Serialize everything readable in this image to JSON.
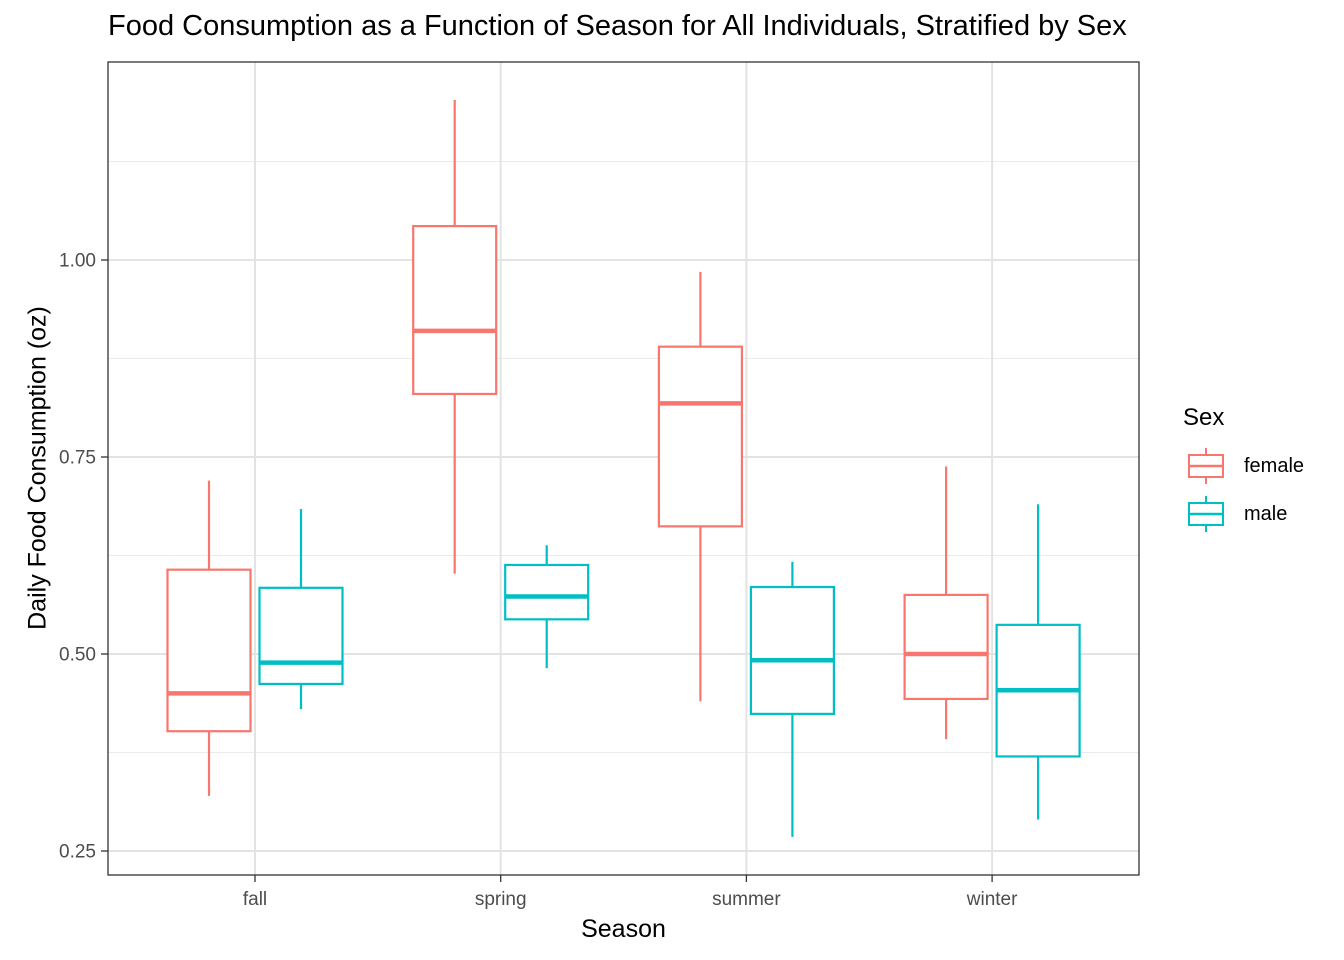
{
  "chart_data": {
    "type": "boxplot",
    "title": "Food Consumption as a Function of Season for All Individuals, Stratified by Sex",
    "xlabel": "Season",
    "ylabel": "Daily Food Consumption (oz)",
    "ylim": [
      0.22,
      1.25
    ],
    "y_ticks": [
      0.25,
      0.5,
      0.75,
      1.0
    ],
    "y_tick_labels": [
      "0.25",
      "0.50",
      "0.75",
      "1.00"
    ],
    "categories": [
      "fall",
      "spring",
      "summer",
      "winter"
    ],
    "legend": {
      "title": "Sex",
      "position": "right"
    },
    "grid": true,
    "series": [
      {
        "name": "female",
        "color": "#F8766D",
        "boxes": [
          {
            "min": 0.32,
            "q1": 0.402,
            "median": 0.45,
            "q3": 0.607,
            "max": 0.72
          },
          {
            "min": 0.602,
            "q1": 0.83,
            "median": 0.91,
            "q3": 1.043,
            "max": 1.203
          },
          {
            "min": 0.44,
            "q1": 0.662,
            "median": 0.818,
            "q3": 0.89,
            "max": 0.985
          },
          {
            "min": 0.392,
            "q1": 0.443,
            "median": 0.5,
            "q3": 0.575,
            "max": 0.738
          }
        ]
      },
      {
        "name": "male",
        "color": "#00BFC4",
        "boxes": [
          {
            "min": 0.43,
            "q1": 0.462,
            "median": 0.489,
            "q3": 0.584,
            "max": 0.684
          },
          {
            "min": 0.482,
            "q1": 0.544,
            "median": 0.573,
            "q3": 0.613,
            "max": 0.638
          },
          {
            "min": 0.268,
            "q1": 0.424,
            "median": 0.492,
            "q3": 0.585,
            "max": 0.617
          },
          {
            "min": 0.29,
            "q1": 0.37,
            "median": 0.454,
            "q3": 0.537,
            "max": 0.69
          }
        ]
      }
    ]
  }
}
